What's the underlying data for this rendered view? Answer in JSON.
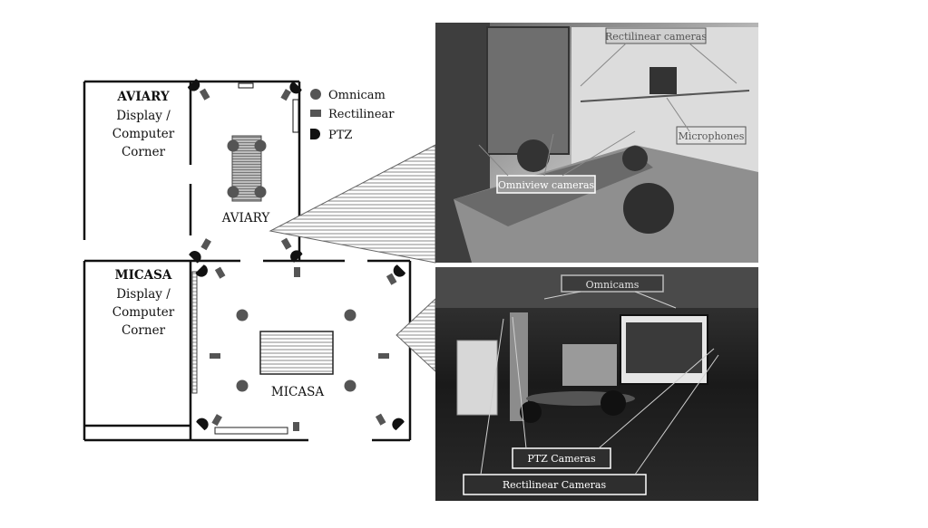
{
  "floorplan": {
    "aviary_corner": [
      "AVIARY",
      "Display /",
      "Computer",
      "Corner"
    ],
    "micasa_corner": [
      "MICASA",
      "Display /",
      "Computer",
      "Corner"
    ],
    "aviary_room": "AVIARY",
    "micasa_room": "MICASA"
  },
  "legend": {
    "omnicam": "Omnicam",
    "rectilinear": "Rectilinear",
    "ptz": "PTZ"
  },
  "photo_aviary": {
    "rectilinear_cameras": "Rectilinear cameras",
    "microphones": "Microphones",
    "omniview_cameras": "Omniview cameras"
  },
  "photo_micasa": {
    "omnicams": "Omnicams",
    "ptz_cameras": "PTZ Cameras",
    "rectilinear_cameras": "Rectilinear Cameras"
  },
  "colors": {
    "wall": "#111111",
    "camera_fill": "#555555",
    "photo_aviary_bg": "#8a8a8a",
    "photo_micasa_bg": "#2a2a2a"
  }
}
